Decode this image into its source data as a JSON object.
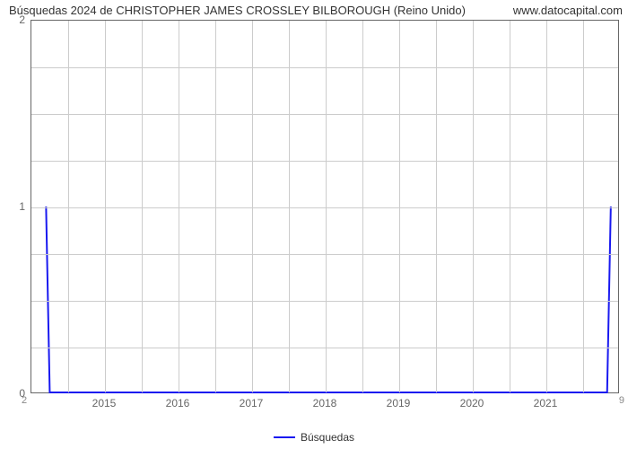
{
  "chart": {
    "type": "line",
    "title": "Búsquedas 2024 de CHRISTOPHER JAMES CROSSLEY BILBOROUGH (Reino Unido)",
    "watermark": "www.datocapital.com",
    "background_color": "#ffffff",
    "grid_color": "#cccccc",
    "border_color": "#666666",
    "series": {
      "name": "Búsquedas",
      "color": "#1919f0",
      "line_width": 2,
      "x": [
        2014.2,
        2014.25,
        2021.85,
        2021.9
      ],
      "y": [
        1,
        0,
        0,
        1
      ]
    },
    "x_axis": {
      "min": 2014.0,
      "max": 2022.0,
      "ticks": [
        2015,
        2016,
        2017,
        2018,
        2019,
        2020,
        2021
      ],
      "minor_grid_count": 16,
      "label_fontsize": 12,
      "label_color": "#666666"
    },
    "y_axis": {
      "min": 0,
      "max": 2,
      "ticks": [
        0,
        1,
        2
      ],
      "minor_grid_count": 8,
      "label_fontsize": 12,
      "label_color": "#666666"
    },
    "corner_bottom_left": "2",
    "corner_bottom_right": "9",
    "legend": {
      "label": "Búsquedas",
      "swatch_color": "#1919f0"
    },
    "title_fontsize": 13,
    "title_color": "#333333"
  }
}
